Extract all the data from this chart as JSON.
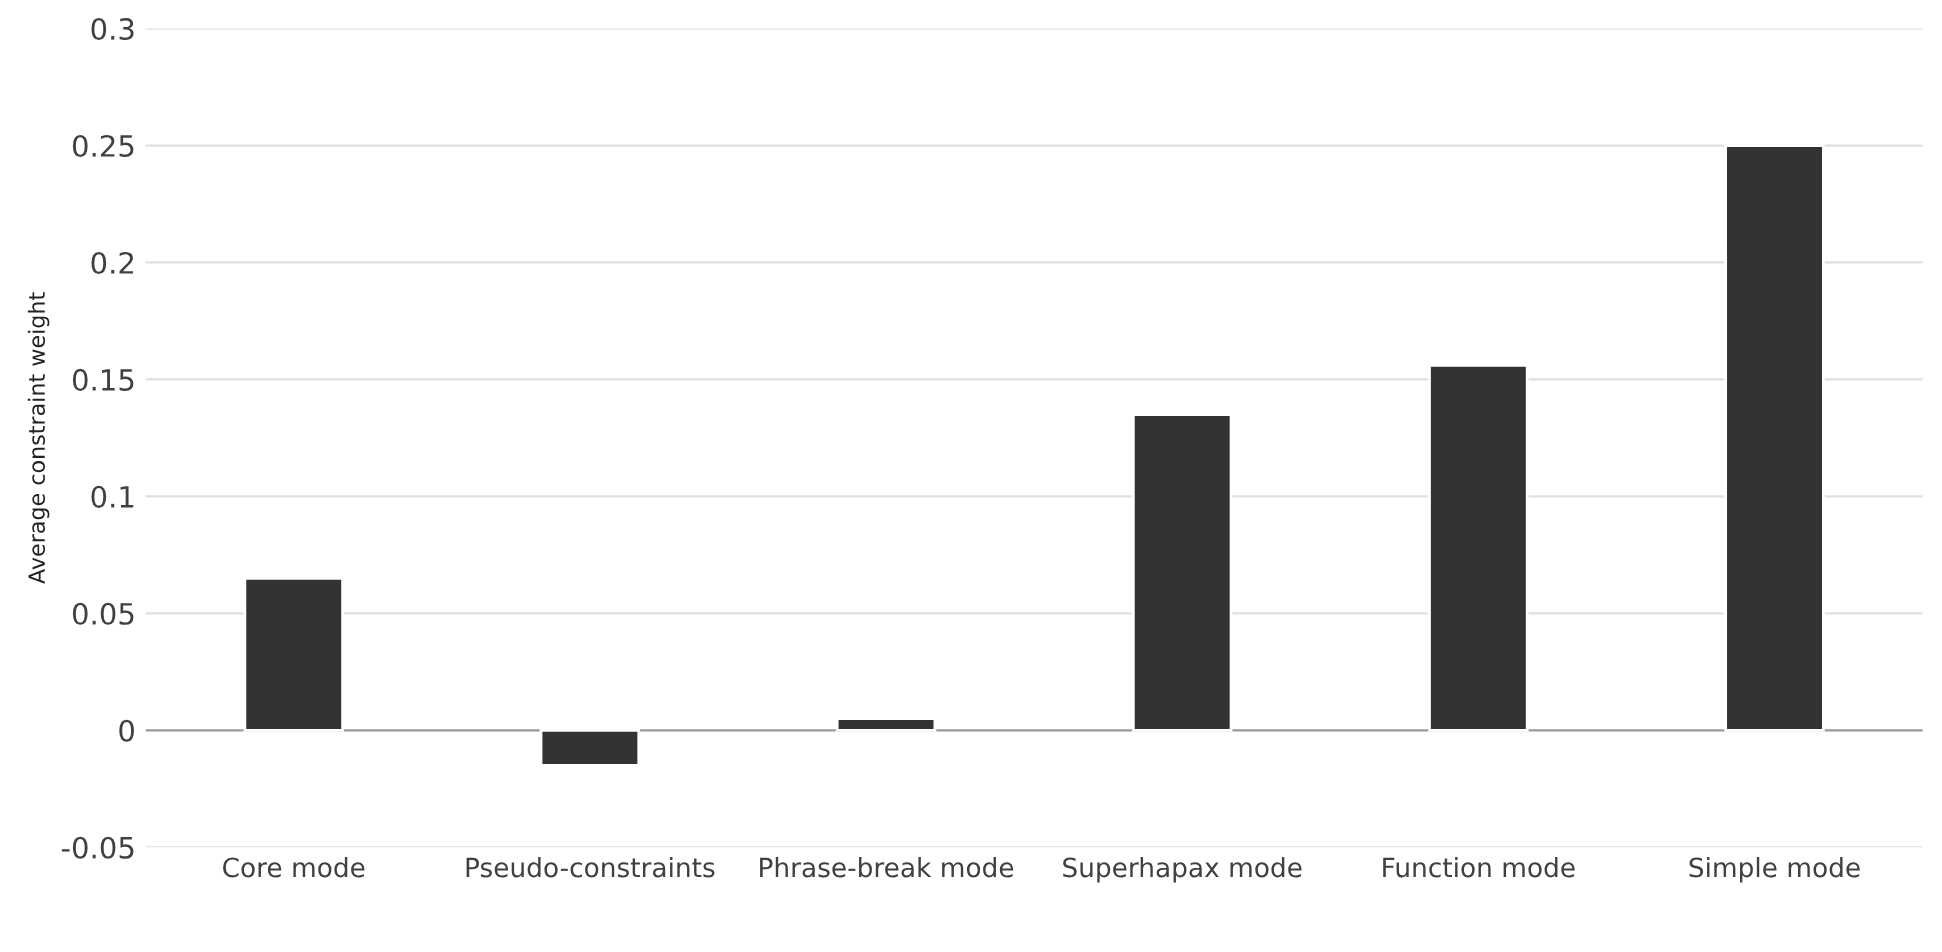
{
  "chart_data": {
    "type": "bar",
    "ylabel": "Average constraint weight",
    "categories": [
      "Core mode",
      "Pseudo-constraints",
      "Phrase-break mode",
      "Superhapax mode",
      "Function mode",
      "Simple mode"
    ],
    "values": [
      0.065,
      -0.015,
      0.005,
      0.135,
      0.156,
      0.25
    ],
    "color": "#333333",
    "ylim": [
      -0.05,
      0.3
    ],
    "yticks": [
      -0.05,
      0,
      0.05,
      0.1,
      0.15,
      0.2,
      0.25,
      0.3
    ],
    "grid": "y"
  }
}
